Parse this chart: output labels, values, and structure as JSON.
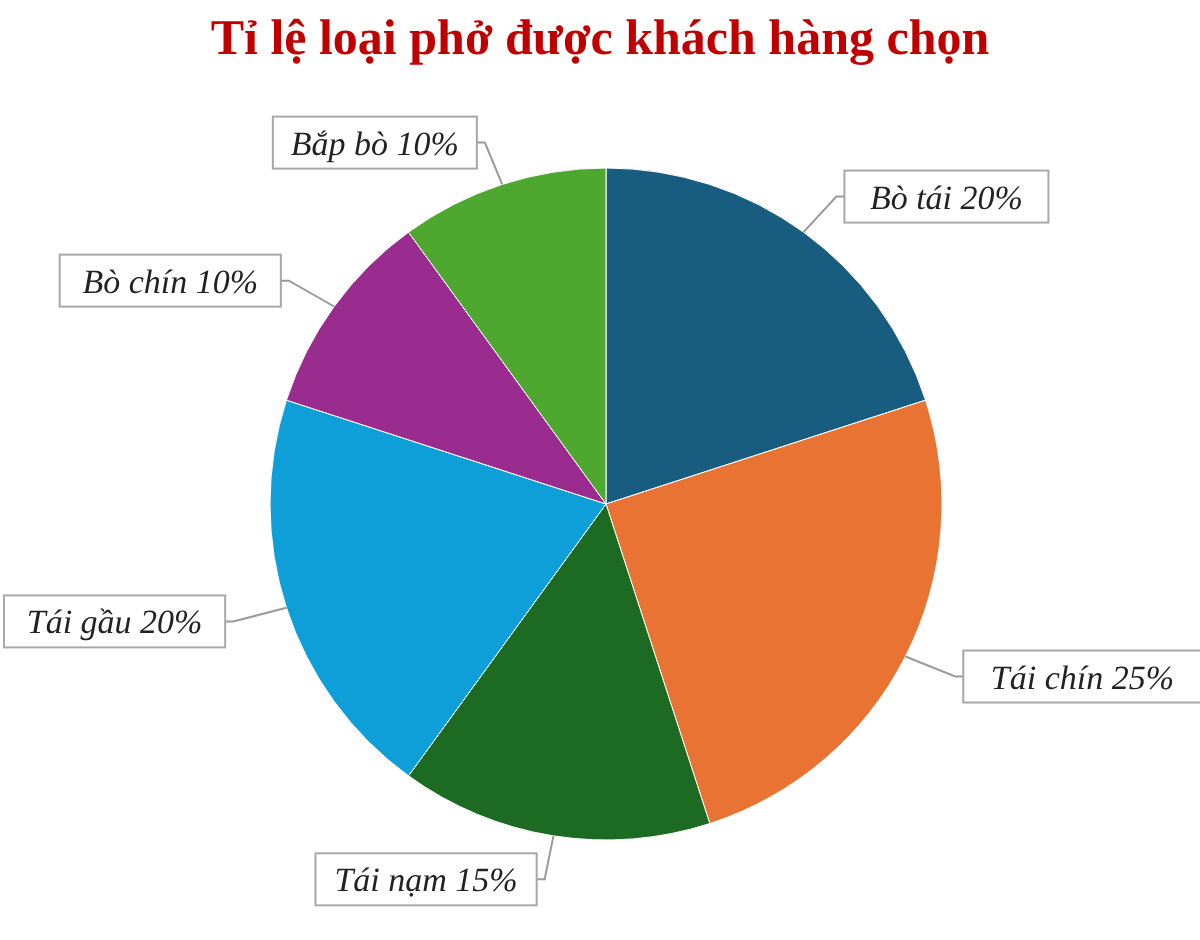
{
  "chart_data": {
    "type": "pie",
    "title": "Tỉ lệ loại phở được khách hàng chọn",
    "categories": [
      "Bò tái",
      "Tái chín",
      "Tái nạm",
      "Tái gầu",
      "Bò chín",
      "Bắp bò"
    ],
    "values": [
      20,
      25,
      15,
      20,
      10,
      10
    ],
    "value_labels": [
      "20%",
      "25%",
      "15%",
      "20%",
      "10%",
      "10%"
    ],
    "colors": [
      "#185d80",
      "#e87332",
      "#1d6b23",
      "#0f9fd8",
      "#9b2c8f",
      "#4ea72e"
    ],
    "legend": false
  }
}
